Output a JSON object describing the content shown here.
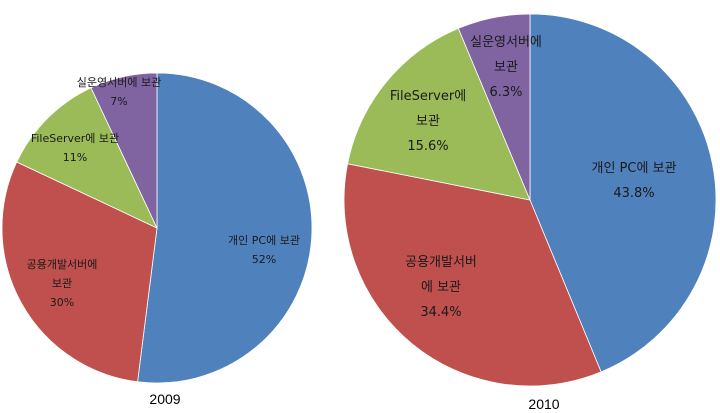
{
  "chart_data": [
    {
      "type": "pie",
      "caption": "2009",
      "start": "top",
      "direction": "clockwise",
      "slices": [
        {
          "label_lines": [
            "개인 PC에 보관"
          ],
          "value_text": "52%",
          "value": 52,
          "color": "#4F81BD"
        },
        {
          "label_lines": [
            "공용개발서버에",
            "보관"
          ],
          "value_text": "30%",
          "value": 30,
          "color": "#C0504D"
        },
        {
          "label_lines": [
            "FileServer에 보관"
          ],
          "value_text": "11%",
          "value": 11,
          "color": "#9BBB59"
        },
        {
          "label_lines": [
            "실운영서버에 보관"
          ],
          "value_text": "7%",
          "value": 7,
          "color": "#8064A2"
        }
      ]
    },
    {
      "type": "pie",
      "caption": "2010",
      "start": "top",
      "direction": "clockwise",
      "slices": [
        {
          "label_lines": [
            "개인 PC에 보관"
          ],
          "value_text": "43.8%",
          "value": 43.8,
          "color": "#4F81BD"
        },
        {
          "label_lines": [
            "공용개발서버",
            "에 보관"
          ],
          "value_text": "34.4%",
          "value": 34.4,
          "color": "#C0504D"
        },
        {
          "label_lines": [
            "FileServer에",
            "보관"
          ],
          "value_text": "15.6%",
          "value": 15.6,
          "color": "#9BBB59"
        },
        {
          "label_lines": [
            "실운영서버에",
            "보관"
          ],
          "value_text": "6.3%",
          "value": 6.3,
          "color": "#8064A2"
        }
      ]
    }
  ]
}
